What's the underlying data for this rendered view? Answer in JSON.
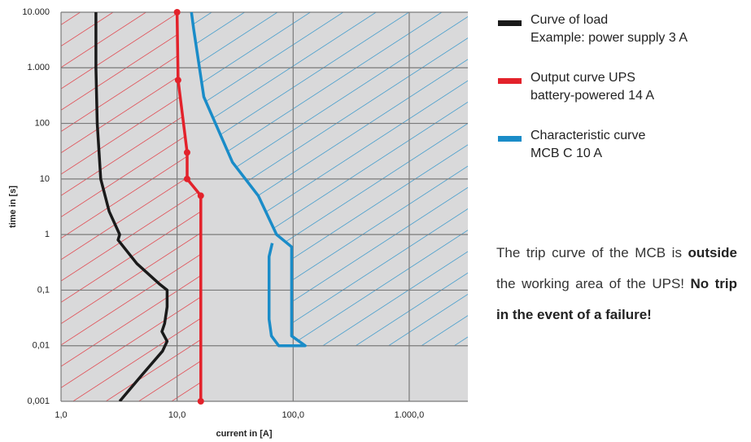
{
  "chart_data": {
    "type": "line",
    "x_label": "current in [A]",
    "y_label": "time in [s]",
    "log_x": true,
    "log_y": true,
    "grid": true,
    "xlim": [
      1,
      3200
    ],
    "ylim": [
      0.001,
      10000
    ],
    "xticks": [
      {
        "value": 1,
        "label": "1,0"
      },
      {
        "value": 10,
        "label": "10,0"
      },
      {
        "value": 100,
        "label": "100,0"
      },
      {
        "value": 1000,
        "label": "1.000,0"
      }
    ],
    "yticks": [
      {
        "value": 10000,
        "label": "10.000"
      },
      {
        "value": 1000,
        "label": "1.000"
      },
      100,
      10,
      1,
      {
        "value": 0.1,
        "label": "0,1"
      },
      {
        "value": 0.01,
        "label": "0,01"
      },
      {
        "value": 0.001,
        "label": "0,001"
      }
    ],
    "series": [
      {
        "name": "Curve of load",
        "note": "Example: power supply 3 A",
        "color": "#1a1a1a",
        "hatch": null,
        "markers": false,
        "x": [
          2.0,
          2.0,
          2.05,
          2.2,
          2.6,
          3.2,
          3.1,
          4.5,
          7,
          8.2,
          8.2,
          7.8,
          7.4,
          8.2,
          7.5,
          5,
          3.2
        ],
        "values": [
          10000,
          1000,
          100,
          10,
          2.6,
          1,
          0.8,
          0.3,
          0.13,
          0.1,
          0.05,
          0.025,
          0.018,
          0.012,
          0.008,
          0.003,
          0.001
        ]
      },
      {
        "name": "Output curve UPS",
        "note": "battery-powered 14 A",
        "color": "#e3222b",
        "hatch": "left",
        "markers": true,
        "x": [
          10,
          10.2,
          12.2,
          12.2,
          16,
          16
        ],
        "values": [
          10000,
          600,
          30,
          10,
          5,
          0.001
        ]
      },
      {
        "name": "Characteristic curve",
        "note": "MCB C 10 A",
        "color": "#1a8cc8",
        "hatch": "right",
        "markers": false,
        "x": [
          13.3,
          13.9,
          17,
          30,
          50,
          72,
          97,
          97,
          127,
          75,
          65,
          62,
          62,
          66
        ],
        "values": [
          10000,
          5000,
          300,
          20,
          5,
          1,
          0.6,
          0.015,
          0.01,
          0.01,
          0.015,
          0.03,
          0.4,
          0.7
        ]
      }
    ],
    "annotation": [
      {
        "text": "The trip curve of the MCB is ",
        "bold": false
      },
      {
        "text": "outside",
        "bold": true
      },
      {
        "text": " the working area of the UPS! ",
        "bold": false
      },
      {
        "text": "No trip in the event of a failure!",
        "bold": true
      }
    ]
  }
}
